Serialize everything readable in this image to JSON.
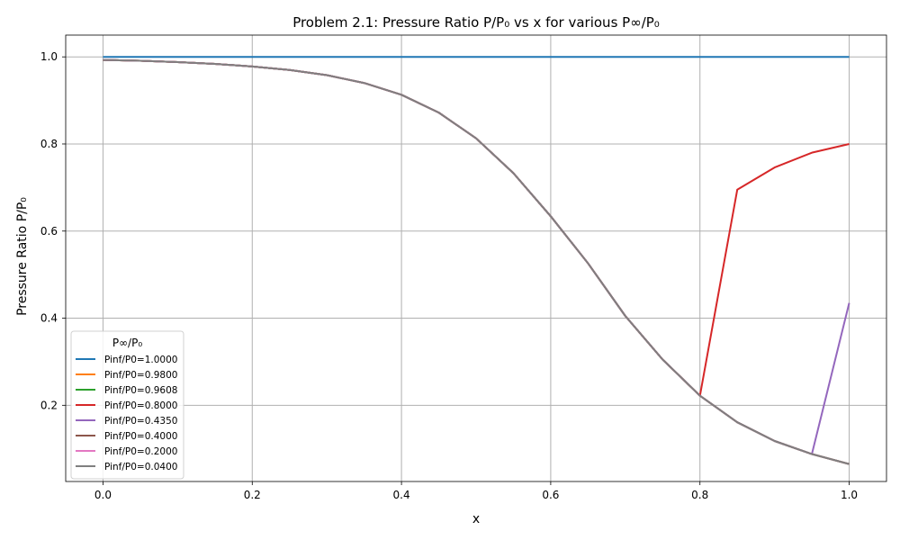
{
  "chart_data": {
    "type": "line",
    "title": "Problem 2.1: Pressure Ratio P/P₀ vs x for various P∞/P₀",
    "xlabel": "x",
    "ylabel": "Pressure Ratio P/P₀",
    "xlim": [
      -0.05,
      1.05
    ],
    "ylim": [
      0.025,
      1.05
    ],
    "xticks": [
      0.0,
      0.2,
      0.4,
      0.6,
      0.8,
      1.0
    ],
    "xtick_labels": [
      "0.0",
      "0.2",
      "0.4",
      "0.6",
      "0.8",
      "1.0"
    ],
    "yticks": [
      0.2,
      0.4,
      0.6,
      0.8,
      1.0
    ],
    "ytick_labels": [
      "0.2",
      "0.4",
      "0.6",
      "0.8",
      "1.0"
    ],
    "grid": true,
    "legend_title": "P∞/P₀",
    "legend_position": "lower-left",
    "x": [
      0.0,
      0.05,
      0.1,
      0.15,
      0.2,
      0.25,
      0.3,
      0.35,
      0.4,
      0.45,
      0.5,
      0.55,
      0.6,
      0.65,
      0.7,
      0.75,
      0.8,
      0.85,
      0.9,
      0.95,
      1.0
    ],
    "series": [
      {
        "name": "Pinf/P0=1.0000",
        "color": "#1f77b4",
        "values": [
          1,
          1,
          1,
          1,
          1,
          1,
          1,
          1,
          1,
          1,
          1,
          1,
          1,
          1,
          1,
          1,
          1,
          1,
          1,
          1,
          1
        ]
      },
      {
        "name": "Pinf/P0=0.9800",
        "color": "#ff7f0e",
        "values": [
          0.993,
          0.991,
          0.988,
          0.984,
          0.978,
          0.97,
          0.958,
          0.94,
          0.913,
          0.872,
          0.813,
          0.733,
          0.634,
          0.526,
          0.405,
          0.305,
          0.222,
          0.161,
          0.118,
          0.088,
          0.065
        ]
      },
      {
        "name": "Pinf/P0=0.9608",
        "color": "#2ca02c",
        "values": [
          0.993,
          0.991,
          0.988,
          0.984,
          0.978,
          0.97,
          0.958,
          0.94,
          0.913,
          0.872,
          0.813,
          0.733,
          0.634,
          0.526,
          0.405,
          0.305,
          0.222,
          0.161,
          0.118,
          0.088,
          0.065
        ]
      },
      {
        "name": "Pinf/P0=0.8000",
        "color": "#d62728",
        "values": [
          0.993,
          0.991,
          0.988,
          0.984,
          0.978,
          0.97,
          0.958,
          0.94,
          0.913,
          0.872,
          0.813,
          0.733,
          0.634,
          0.526,
          0.405,
          0.305,
          0.222,
          0.695,
          0.746,
          0.78,
          0.8
        ]
      },
      {
        "name": "Pinf/P0=0.4350",
        "color": "#9467bd",
        "values": [
          0.993,
          0.991,
          0.988,
          0.984,
          0.978,
          0.97,
          0.958,
          0.94,
          0.913,
          0.872,
          0.813,
          0.733,
          0.634,
          0.526,
          0.405,
          0.305,
          0.222,
          0.161,
          0.118,
          0.088,
          0.435
        ]
      },
      {
        "name": "Pinf/P0=0.4000",
        "color": "#8c564b",
        "values": [
          0.993,
          0.991,
          0.988,
          0.984,
          0.978,
          0.97,
          0.958,
          0.94,
          0.913,
          0.872,
          0.813,
          0.733,
          0.634,
          0.526,
          0.405,
          0.305,
          0.222,
          0.161,
          0.118,
          0.088,
          0.065
        ]
      },
      {
        "name": "Pinf/P0=0.2000",
        "color": "#e377c2",
        "values": [
          0.993,
          0.991,
          0.988,
          0.984,
          0.978,
          0.97,
          0.958,
          0.94,
          0.913,
          0.872,
          0.813,
          0.733,
          0.634,
          0.526,
          0.405,
          0.305,
          0.222,
          0.161,
          0.118,
          0.088,
          0.065
        ]
      },
      {
        "name": "Pinf/P0=0.0400",
        "color": "#7f7f7f",
        "values": [
          0.993,
          0.991,
          0.988,
          0.984,
          0.978,
          0.97,
          0.958,
          0.94,
          0.913,
          0.872,
          0.813,
          0.733,
          0.634,
          0.526,
          0.405,
          0.305,
          0.222,
          0.161,
          0.118,
          0.088,
          0.065
        ]
      }
    ]
  }
}
